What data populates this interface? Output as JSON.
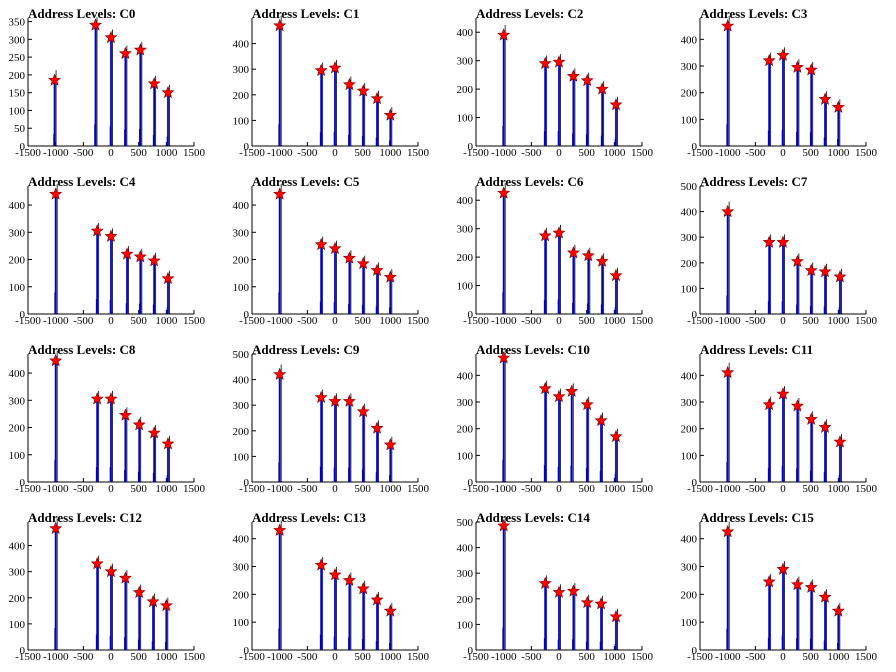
{
  "figure": {
    "background": "#ffffff"
  },
  "style": {
    "spike_color": "#0000cc",
    "marker_fill": "#ff0000",
    "marker_stroke": "#7a0000"
  },
  "chart_data": [
    {
      "type": "bar",
      "title": "Address Levels: C0",
      "x_ticks": [
        -1500,
        -1000,
        -500,
        0,
        500,
        1000,
        1500
      ],
      "y_ticks": [
        0,
        50,
        100,
        150,
        200,
        250,
        300,
        350
      ],
      "xlim": [
        -1500,
        1500
      ],
      "ylim": [
        0,
        360
      ],
      "peaks": [
        {
          "x": -1020,
          "y": 185
        },
        {
          "x": -280,
          "y": 340
        },
        {
          "x": 0,
          "y": 305
        },
        {
          "x": 260,
          "y": 260
        },
        {
          "x": 530,
          "y": 270
        },
        {
          "x": 780,
          "y": 175
        },
        {
          "x": 1030,
          "y": 150
        }
      ]
    },
    {
      "type": "bar",
      "title": "Address Levels: C1",
      "x_ticks": [
        -1500,
        -1000,
        -500,
        0,
        500,
        1000,
        1500
      ],
      "y_ticks": [
        0,
        100,
        200,
        300,
        400
      ],
      "xlim": [
        -1500,
        1500
      ],
      "ylim": [
        0,
        500
      ],
      "peaks": [
        {
          "x": -1000,
          "y": 470
        },
        {
          "x": -250,
          "y": 295
        },
        {
          "x": 0,
          "y": 305
        },
        {
          "x": 260,
          "y": 240
        },
        {
          "x": 510,
          "y": 215
        },
        {
          "x": 760,
          "y": 185
        },
        {
          "x": 1000,
          "y": 120
        }
      ]
    },
    {
      "type": "bar",
      "title": "Address Levels: C2",
      "x_ticks": [
        -1500,
        -1000,
        -500,
        0,
        500,
        1000,
        1500
      ],
      "y_ticks": [
        0,
        100,
        200,
        300,
        400
      ],
      "xlim": [
        -1500,
        1500
      ],
      "ylim": [
        0,
        450
      ],
      "peaks": [
        {
          "x": -1000,
          "y": 390
        },
        {
          "x": -250,
          "y": 290
        },
        {
          "x": 0,
          "y": 295
        },
        {
          "x": 260,
          "y": 245
        },
        {
          "x": 510,
          "y": 230
        },
        {
          "x": 780,
          "y": 200
        },
        {
          "x": 1030,
          "y": 145
        }
      ]
    },
    {
      "type": "bar",
      "title": "Address Levels: C3",
      "x_ticks": [
        -1500,
        -1000,
        -500,
        0,
        500,
        1000,
        1500
      ],
      "y_ticks": [
        0,
        100,
        200,
        300,
        400
      ],
      "xlim": [
        -1500,
        1500
      ],
      "ylim": [
        0,
        480
      ],
      "peaks": [
        {
          "x": -1000,
          "y": 450
        },
        {
          "x": -250,
          "y": 320
        },
        {
          "x": 0,
          "y": 340
        },
        {
          "x": 260,
          "y": 295
        },
        {
          "x": 510,
          "y": 285
        },
        {
          "x": 760,
          "y": 175
        },
        {
          "x": 1000,
          "y": 145
        }
      ]
    },
    {
      "type": "bar",
      "title": "Address Levels: C4",
      "x_ticks": [
        -1500,
        -1000,
        -500,
        0,
        500,
        1000,
        1500
      ],
      "y_ticks": [
        0,
        100,
        200,
        300,
        400
      ],
      "xlim": [
        -1500,
        1500
      ],
      "ylim": [
        0,
        470
      ],
      "peaks": [
        {
          "x": -1000,
          "y": 440
        },
        {
          "x": -250,
          "y": 305
        },
        {
          "x": 0,
          "y": 285
        },
        {
          "x": 290,
          "y": 220
        },
        {
          "x": 530,
          "y": 210
        },
        {
          "x": 780,
          "y": 195
        },
        {
          "x": 1030,
          "y": 130
        }
      ]
    },
    {
      "type": "bar",
      "title": "Address Levels: C5",
      "x_ticks": [
        -1500,
        -1000,
        -500,
        0,
        500,
        1000,
        1500
      ],
      "y_ticks": [
        0,
        100,
        200,
        300,
        400
      ],
      "xlim": [
        -1500,
        1500
      ],
      "ylim": [
        0,
        470
      ],
      "peaks": [
        {
          "x": -1000,
          "y": 440
        },
        {
          "x": -250,
          "y": 255
        },
        {
          "x": 0,
          "y": 240
        },
        {
          "x": 260,
          "y": 205
        },
        {
          "x": 510,
          "y": 185
        },
        {
          "x": 760,
          "y": 160
        },
        {
          "x": 1000,
          "y": 135
        }
      ]
    },
    {
      "type": "bar",
      "title": "Address Levels: C6",
      "x_ticks": [
        -1500,
        -1000,
        -500,
        0,
        500,
        1000,
        1500
      ],
      "y_ticks": [
        0,
        100,
        200,
        300,
        400
      ],
      "xlim": [
        -1500,
        1500
      ],
      "ylim": [
        0,
        450
      ],
      "peaks": [
        {
          "x": -1000,
          "y": 425
        },
        {
          "x": -250,
          "y": 275
        },
        {
          "x": 0,
          "y": 285
        },
        {
          "x": 260,
          "y": 215
        },
        {
          "x": 530,
          "y": 205
        },
        {
          "x": 780,
          "y": 185
        },
        {
          "x": 1030,
          "y": 135
        }
      ]
    },
    {
      "type": "bar",
      "title": "Address Levels: C7",
      "x_ticks": [
        -1500,
        -1000,
        -500,
        0,
        500,
        1000,
        1500
      ],
      "y_ticks": [
        0,
        100,
        200,
        300,
        400,
        500
      ],
      "xlim": [
        -1500,
        1500
      ],
      "ylim": [
        0,
        500
      ],
      "peaks": [
        {
          "x": -1000,
          "y": 400
        },
        {
          "x": -250,
          "y": 280
        },
        {
          "x": 0,
          "y": 280
        },
        {
          "x": 260,
          "y": 205
        },
        {
          "x": 510,
          "y": 170
        },
        {
          "x": 760,
          "y": 165
        },
        {
          "x": 1030,
          "y": 145
        }
      ]
    },
    {
      "type": "bar",
      "title": "Address Levels: C8",
      "x_ticks": [
        -1500,
        -1000,
        -500,
        0,
        500,
        1000,
        1500
      ],
      "y_ticks": [
        0,
        100,
        200,
        300,
        400
      ],
      "xlim": [
        -1500,
        1500
      ],
      "ylim": [
        0,
        470
      ],
      "peaks": [
        {
          "x": -1000,
          "y": 445
        },
        {
          "x": -250,
          "y": 305
        },
        {
          "x": 0,
          "y": 305
        },
        {
          "x": 260,
          "y": 245
        },
        {
          "x": 510,
          "y": 210
        },
        {
          "x": 780,
          "y": 180
        },
        {
          "x": 1030,
          "y": 140
        }
      ]
    },
    {
      "type": "bar",
      "title": "Address Levels: C9",
      "x_ticks": [
        -1500,
        -1000,
        -500,
        0,
        500,
        1000,
        1500
      ],
      "y_ticks": [
        0,
        100,
        200,
        300,
        400,
        500
      ],
      "xlim": [
        -1500,
        1500
      ],
      "ylim": [
        0,
        500
      ],
      "peaks": [
        {
          "x": -1000,
          "y": 420
        },
        {
          "x": -250,
          "y": 330
        },
        {
          "x": 0,
          "y": 315
        },
        {
          "x": 260,
          "y": 315
        },
        {
          "x": 510,
          "y": 275
        },
        {
          "x": 760,
          "y": 210
        },
        {
          "x": 1000,
          "y": 145
        }
      ]
    },
    {
      "type": "bar",
      "title": "Address Levels: C10",
      "x_ticks": [
        -1500,
        -1000,
        -500,
        0,
        500,
        1000,
        1500
      ],
      "y_ticks": [
        0,
        100,
        200,
        300,
        400
      ],
      "xlim": [
        -1500,
        1500
      ],
      "ylim": [
        0,
        480
      ],
      "peaks": [
        {
          "x": -1000,
          "y": 465
        },
        {
          "x": -250,
          "y": 350
        },
        {
          "x": 0,
          "y": 320
        },
        {
          "x": 230,
          "y": 340
        },
        {
          "x": 510,
          "y": 290
        },
        {
          "x": 760,
          "y": 230
        },
        {
          "x": 1030,
          "y": 170
        }
      ]
    },
    {
      "type": "bar",
      "title": "Address Levels: C11",
      "x_ticks": [
        -1500,
        -1000,
        -500,
        0,
        500,
        1000,
        1500
      ],
      "y_ticks": [
        0,
        100,
        200,
        300,
        400
      ],
      "xlim": [
        -1500,
        1500
      ],
      "ylim": [
        0,
        480
      ],
      "peaks": [
        {
          "x": -1000,
          "y": 410
        },
        {
          "x": -250,
          "y": 290
        },
        {
          "x": 0,
          "y": 330
        },
        {
          "x": 260,
          "y": 285
        },
        {
          "x": 510,
          "y": 235
        },
        {
          "x": 760,
          "y": 205
        },
        {
          "x": 1030,
          "y": 150
        }
      ]
    },
    {
      "type": "bar",
      "title": "Address Levels: C12",
      "x_ticks": [
        -1500,
        -1000,
        -500,
        0,
        500,
        1000,
        1500
      ],
      "y_ticks": [
        0,
        100,
        200,
        300,
        400
      ],
      "xlim": [
        -1500,
        1500
      ],
      "ylim": [
        0,
        490
      ],
      "peaks": [
        {
          "x": -1000,
          "y": 465
        },
        {
          "x": -250,
          "y": 330
        },
        {
          "x": 0,
          "y": 300
        },
        {
          "x": 260,
          "y": 275
        },
        {
          "x": 510,
          "y": 220
        },
        {
          "x": 760,
          "y": 185
        },
        {
          "x": 1000,
          "y": 170
        }
      ]
    },
    {
      "type": "bar",
      "title": "Address Levels: C13",
      "x_ticks": [
        -1500,
        -1000,
        -500,
        0,
        500,
        1000,
        1500
      ],
      "y_ticks": [
        0,
        100,
        200,
        300,
        400
      ],
      "xlim": [
        -1500,
        1500
      ],
      "ylim": [
        0,
        460
      ],
      "peaks": [
        {
          "x": -1000,
          "y": 430
        },
        {
          "x": -250,
          "y": 305
        },
        {
          "x": 0,
          "y": 270
        },
        {
          "x": 260,
          "y": 250
        },
        {
          "x": 510,
          "y": 220
        },
        {
          "x": 760,
          "y": 180
        },
        {
          "x": 1000,
          "y": 140
        }
      ]
    },
    {
      "type": "bar",
      "title": "Address Levels: C14",
      "x_ticks": [
        -1500,
        -1000,
        -500,
        0,
        500,
        1000,
        1500
      ],
      "y_ticks": [
        0,
        100,
        200,
        300,
        400,
        500
      ],
      "xlim": [
        -1500,
        1500
      ],
      "ylim": [
        0,
        500
      ],
      "peaks": [
        {
          "x": -1000,
          "y": 485
        },
        {
          "x": -250,
          "y": 260
        },
        {
          "x": 0,
          "y": 225
        },
        {
          "x": 260,
          "y": 230
        },
        {
          "x": 510,
          "y": 185
        },
        {
          "x": 760,
          "y": 180
        },
        {
          "x": 1030,
          "y": 130
        }
      ]
    },
    {
      "type": "bar",
      "title": "Address Levels: C15",
      "x_ticks": [
        -1500,
        -1000,
        -500,
        0,
        500,
        1000,
        1500
      ],
      "y_ticks": [
        0,
        100,
        200,
        300,
        400
      ],
      "xlim": [
        -1500,
        1500
      ],
      "ylim": [
        0,
        460
      ],
      "peaks": [
        {
          "x": -1000,
          "y": 425
        },
        {
          "x": -250,
          "y": 245
        },
        {
          "x": 0,
          "y": 290
        },
        {
          "x": 260,
          "y": 235
        },
        {
          "x": 510,
          "y": 225
        },
        {
          "x": 760,
          "y": 190
        },
        {
          "x": 1000,
          "y": 140
        }
      ]
    }
  ]
}
